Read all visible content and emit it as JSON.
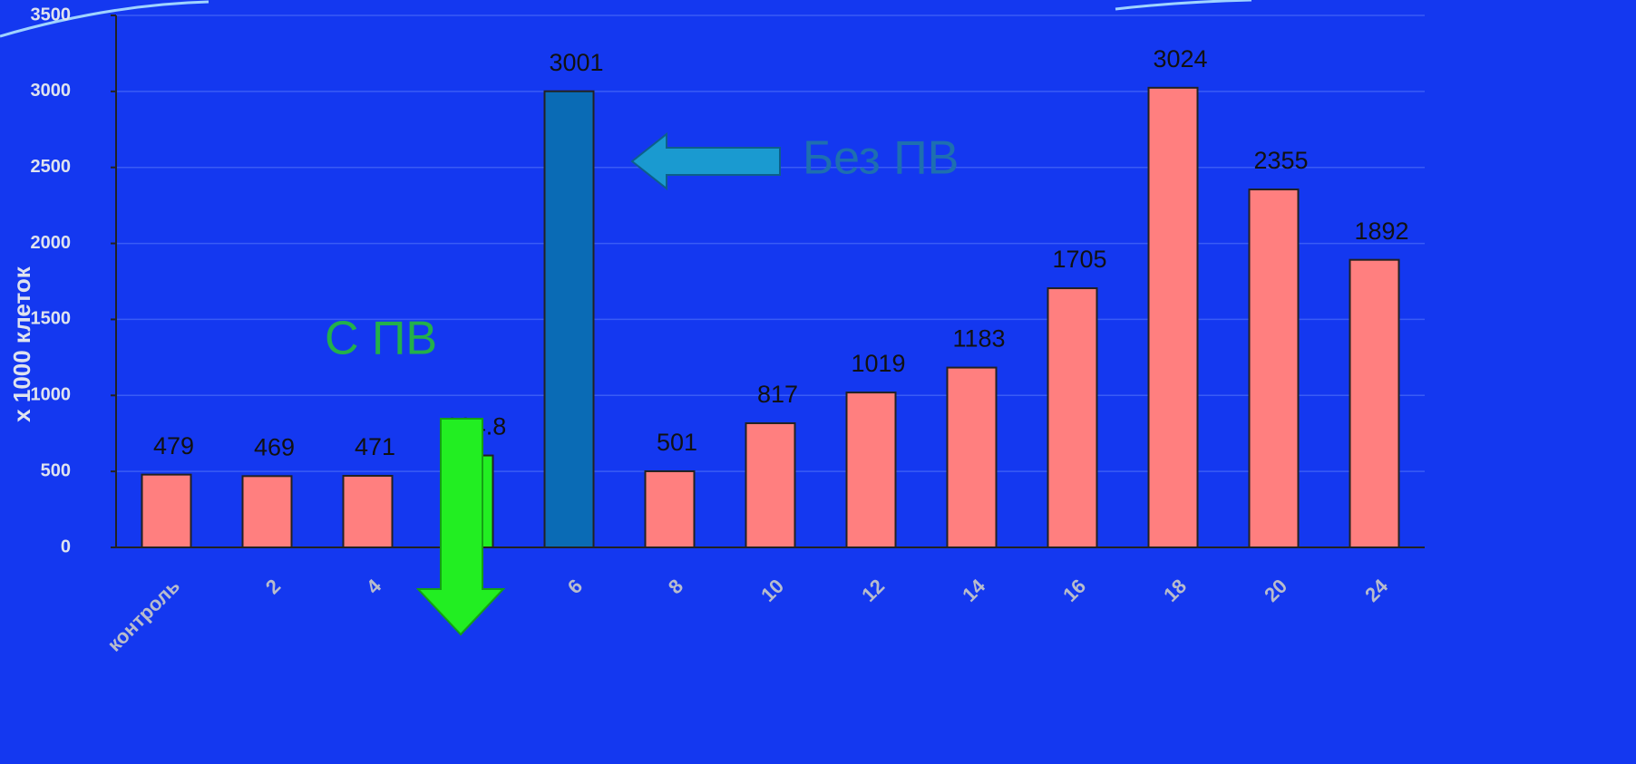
{
  "chart_data": {
    "type": "bar",
    "y_label": "х 1000 клеток",
    "categories": [
      "контроль",
      "2",
      "4",
      null,
      "6",
      "8",
      "10",
      "12",
      "14",
      "16",
      "18",
      "20",
      "24"
    ],
    "values": [
      479,
      469,
      471,
      604.8,
      3001,
      501,
      817,
      1019,
      1183,
      1705,
      3024,
      2355,
      1892
    ],
    "colors": [
      "#ff7f7f",
      "#ff7f7f",
      "#ff7f7f",
      "#22ee22",
      "#0a6bb5",
      "#ff7f7f",
      "#ff7f7f",
      "#ff7f7f",
      "#ff7f7f",
      "#ff7f7f",
      "#ff7f7f",
      "#ff7f7f",
      "#ff7f7f"
    ],
    "ylim": [
      0,
      3500
    ],
    "yticks": [
      0,
      500,
      1000,
      1500,
      2000,
      2500,
      3000,
      3500
    ],
    "grid": true,
    "annotations": [
      {
        "text": "Без ПВ",
        "color": "#1e6fb0"
      },
      {
        "text": "С ПВ",
        "color": "#23b04a"
      }
    ]
  }
}
